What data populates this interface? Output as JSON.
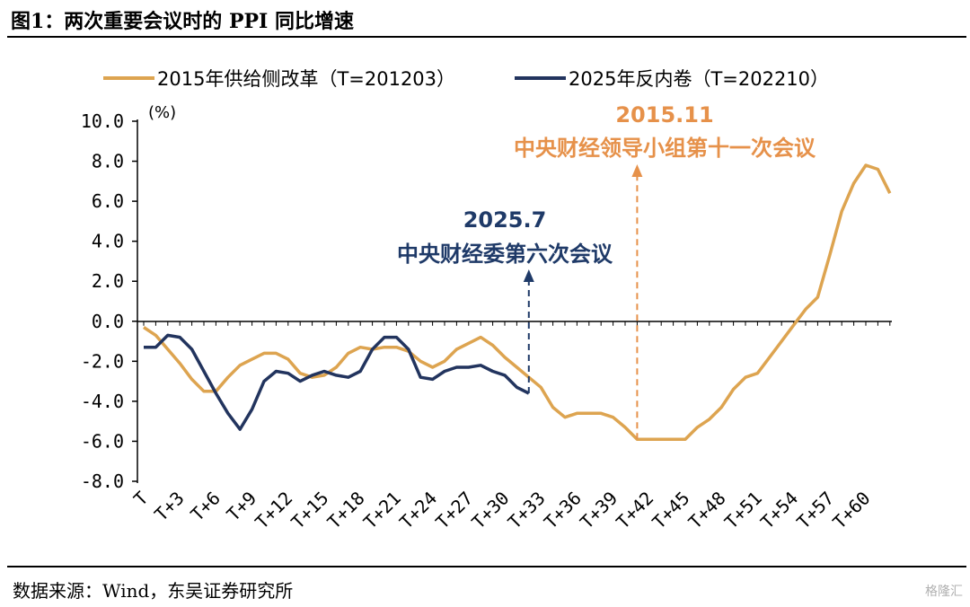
{
  "figure": {
    "title": "图1：两次重要会议时的 PPI 同比增速",
    "source": "数据来源：Wind，东吴证券研究所",
    "watermark": "格隆汇"
  },
  "chart_data": {
    "type": "line",
    "title": "",
    "xlabel": "",
    "ylabel": "(%)",
    "ylim": [
      -8,
      10
    ],
    "yticks": [
      "10.0",
      "8.0",
      "6.0",
      "4.0",
      "2.0",
      "0.0",
      "-2.0",
      "-4.0",
      "-6.0",
      "-8.0"
    ],
    "xticks": [
      "T",
      "T+3",
      "T+6",
      "T+9",
      "T+12",
      "T+15",
      "T+18",
      "T+21",
      "T+24",
      "T+27",
      "T+30",
      "T+33",
      "T+36",
      "T+39",
      "T+42",
      "T+45",
      "T+48",
      "T+51",
      "T+54",
      "T+57",
      "T+60"
    ],
    "legend": "top",
    "grid": false,
    "colors": {
      "series_2015": "#DDA450",
      "series_2025": "#22345E",
      "ann_2015": "#E6914A",
      "ann_2025": "#1F3A68"
    },
    "series": [
      {
        "name": "2015年供给侧改革（T=201203）",
        "values": [
          -0.3,
          -0.7,
          -1.4,
          -2.1,
          -2.9,
          -3.5,
          -3.5,
          -2.8,
          -2.2,
          -1.9,
          -1.6,
          -1.6,
          -1.9,
          -2.6,
          -2.8,
          -2.7,
          -2.3,
          -1.6,
          -1.3,
          -1.4,
          -1.3,
          -1.3,
          -1.5,
          -2.0,
          -2.3,
          -2.0,
          -1.4,
          -1.1,
          -0.8,
          -1.2,
          -1.8,
          -2.3,
          -2.8,
          -3.3,
          -4.3,
          -4.8,
          -4.6,
          -4.6,
          -4.6,
          -4.8,
          -5.3,
          -5.9,
          -5.9,
          -5.9,
          -5.9,
          -5.9,
          -5.3,
          -4.9,
          -4.3,
          -3.4,
          -2.8,
          -2.6,
          -1.8,
          -1.0,
          -0.2,
          0.6,
          1.2,
          3.3,
          5.5,
          6.9,
          7.8,
          7.6,
          6.4
        ]
      },
      {
        "name": "2025年反内卷（T=202210）",
        "values": [
          -1.3,
          -1.3,
          -0.7,
          -0.8,
          -1.4,
          -2.5,
          -3.6,
          -4.6,
          -5.4,
          -4.4,
          -3.0,
          -2.5,
          -2.6,
          -3.0,
          -2.7,
          -2.5,
          -2.7,
          -2.8,
          -2.5,
          -1.4,
          -0.8,
          -0.8,
          -1.4,
          -2.8,
          -2.9,
          -2.5,
          -2.3,
          -2.3,
          -2.2,
          -2.5,
          -2.7,
          -3.3,
          -3.6
        ]
      }
    ],
    "annotations": [
      {
        "id": "ann_2025",
        "x": 32,
        "date": "2025.7",
        "text": "中央财经委第六次会议"
      },
      {
        "id": "ann_2015",
        "x": 41,
        "date": "2015.11",
        "text": "中央财经领导小组第十一次会议"
      }
    ]
  }
}
